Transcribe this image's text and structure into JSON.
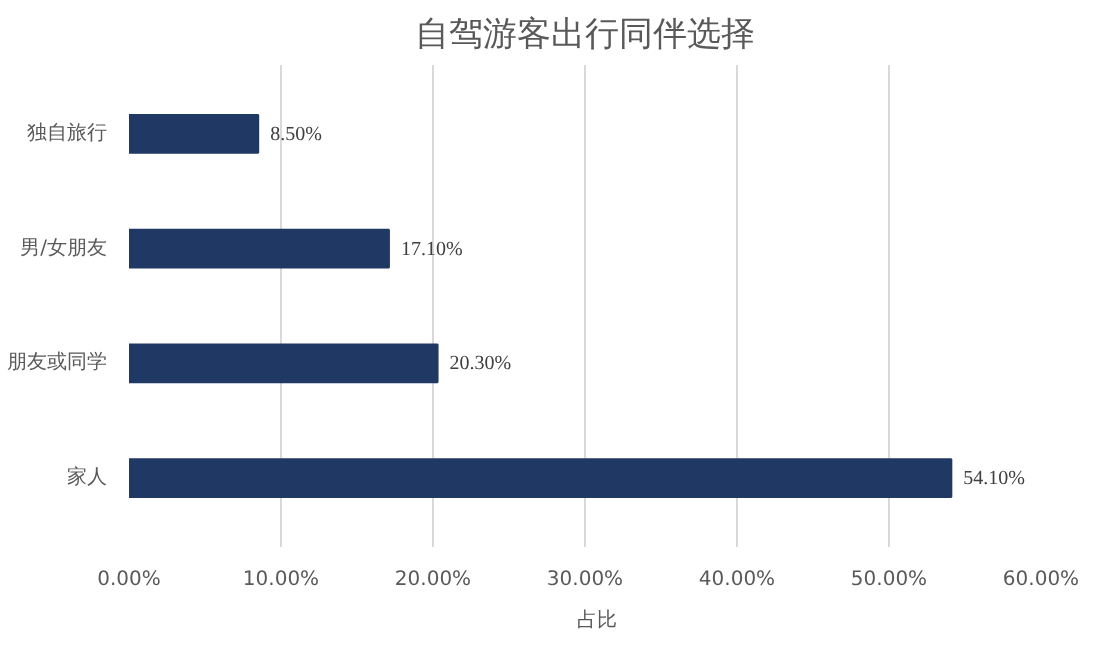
{
  "chart_data": {
    "type": "bar",
    "orientation": "horizontal",
    "title": "自驾游客出行同伴选择",
    "categories": [
      "独自旅行",
      "男/女朋友",
      "朋友或同学",
      "家人"
    ],
    "series": [
      {
        "name": "占比",
        "color": "#203864",
        "values": [
          8.5,
          17.1,
          20.3,
          54.1
        ]
      }
    ],
    "value_labels": [
      "8.50%",
      "17.10%",
      "20.30%",
      "54.10%"
    ],
    "xlim": [
      0,
      60
    ],
    "xticks": [
      {
        "value": 0,
        "label": "0.00%"
      },
      {
        "value": 10,
        "label": "10.00%"
      },
      {
        "value": 20,
        "label": "20.00%"
      },
      {
        "value": 30,
        "label": "30.00%"
      },
      {
        "value": 40,
        "label": "40.00%"
      },
      {
        "value": 50,
        "label": "50.00%"
      },
      {
        "value": 60,
        "label": "60.00%"
      }
    ],
    "grid": "x",
    "legend": "bottom"
  }
}
